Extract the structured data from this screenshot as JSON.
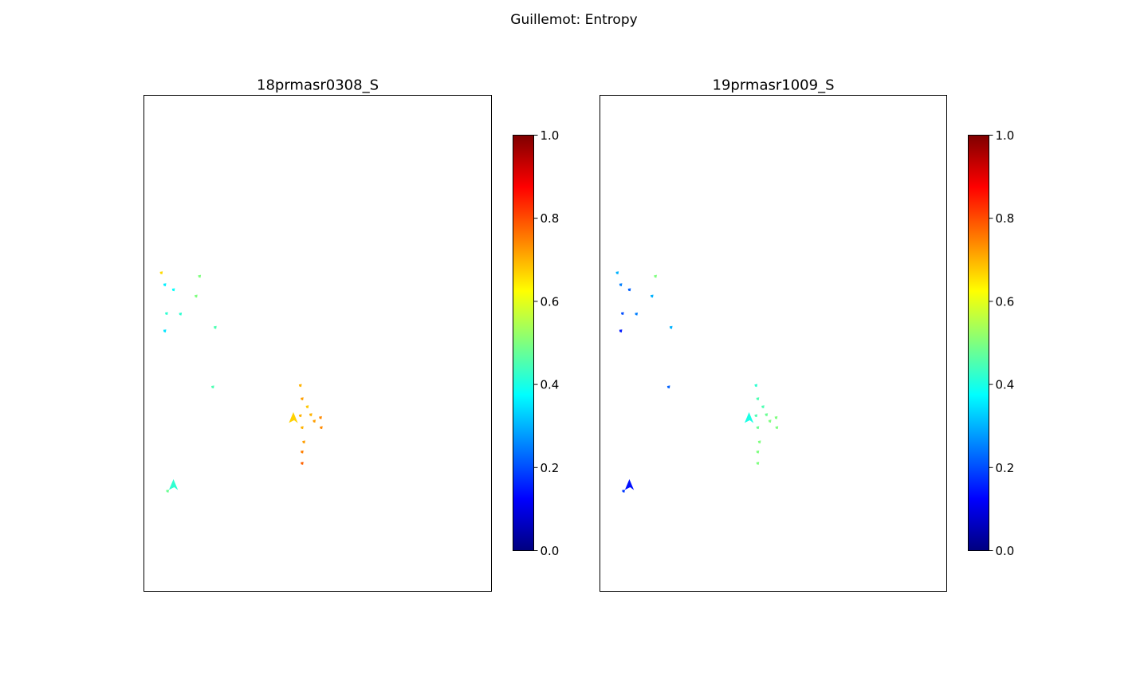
{
  "figure": {
    "title": "Guillemot: Entropy"
  },
  "colormap": {
    "name": "jet",
    "stops": [
      "#00007f",
      "#0000ff",
      "#007fff",
      "#00ffff",
      "#7fff7f",
      "#ffff00",
      "#ff7f00",
      "#ff0000",
      "#7f0000"
    ]
  },
  "chart_data": [
    {
      "type": "heatmap",
      "title": "18prmasr0308_S",
      "xticks": false,
      "yticks": false,
      "colorbar": {
        "range": [
          0,
          1
        ],
        "ticks": [
          0.0,
          0.2,
          0.4,
          0.6,
          0.8,
          1.0
        ],
        "tick_labels": [
          "0.0",
          "0.2",
          "0.4",
          "0.6",
          "0.8",
          "1.0"
        ]
      },
      "patches": [
        {
          "x": 0.05,
          "y": 0.358,
          "value": 0.66
        },
        {
          "x": 0.06,
          "y": 0.382,
          "value": 0.36
        },
        {
          "x": 0.085,
          "y": 0.392,
          "value": 0.38
        },
        {
          "x": 0.16,
          "y": 0.365,
          "value": 0.5
        },
        {
          "x": 0.15,
          "y": 0.405,
          "value": 0.5
        },
        {
          "x": 0.065,
          "y": 0.44,
          "value": 0.42
        },
        {
          "x": 0.105,
          "y": 0.441,
          "value": 0.42
        },
        {
          "x": 0.06,
          "y": 0.475,
          "value": 0.35
        },
        {
          "x": 0.205,
          "y": 0.468,
          "value": 0.45
        },
        {
          "x": 0.198,
          "y": 0.588,
          "value": 0.45
        },
        {
          "x": 0.43,
          "y": 0.653,
          "value": 0.67
        },
        {
          "x": 0.48,
          "y": 0.644,
          "value": 0.7
        },
        {
          "x": 0.47,
          "y": 0.628,
          "value": 0.68
        },
        {
          "x": 0.49,
          "y": 0.657,
          "value": 0.72
        },
        {
          "x": 0.455,
          "y": 0.67,
          "value": 0.7
        },
        {
          "x": 0.45,
          "y": 0.585,
          "value": 0.7
        },
        {
          "x": 0.46,
          "y": 0.699,
          "value": 0.72
        },
        {
          "x": 0.455,
          "y": 0.612,
          "value": 0.72
        },
        {
          "x": 0.508,
          "y": 0.65,
          "value": 0.74
        },
        {
          "x": 0.51,
          "y": 0.67,
          "value": 0.74
        },
        {
          "x": 0.455,
          "y": 0.719,
          "value": 0.75
        },
        {
          "x": 0.455,
          "y": 0.742,
          "value": 0.78
        },
        {
          "x": 0.45,
          "y": 0.646,
          "value": 0.7
        },
        {
          "x": 0.085,
          "y": 0.788,
          "value": 0.42
        },
        {
          "x": 0.068,
          "y": 0.798,
          "value": 0.48
        }
      ]
    },
    {
      "type": "heatmap",
      "title": "19prmasr1009_S",
      "xticks": false,
      "yticks": false,
      "colorbar": {
        "range": [
          0,
          1
        ],
        "ticks": [
          0.0,
          0.2,
          0.4,
          0.6,
          0.8,
          1.0
        ],
        "tick_labels": [
          "0.0",
          "0.2",
          "0.4",
          "0.6",
          "0.8",
          "1.0"
        ]
      },
      "patches": [
        {
          "x": 0.05,
          "y": 0.358,
          "value": 0.3
        },
        {
          "x": 0.06,
          "y": 0.382,
          "value": 0.25
        },
        {
          "x": 0.085,
          "y": 0.392,
          "value": 0.22
        },
        {
          "x": 0.16,
          "y": 0.365,
          "value": 0.5
        },
        {
          "x": 0.15,
          "y": 0.405,
          "value": 0.3
        },
        {
          "x": 0.065,
          "y": 0.44,
          "value": 0.2
        },
        {
          "x": 0.105,
          "y": 0.441,
          "value": 0.25
        },
        {
          "x": 0.06,
          "y": 0.475,
          "value": 0.15
        },
        {
          "x": 0.205,
          "y": 0.468,
          "value": 0.3
        },
        {
          "x": 0.198,
          "y": 0.588,
          "value": 0.22
        },
        {
          "x": 0.43,
          "y": 0.653,
          "value": 0.4
        },
        {
          "x": 0.48,
          "y": 0.644,
          "value": 0.48
        },
        {
          "x": 0.47,
          "y": 0.628,
          "value": 0.45
        },
        {
          "x": 0.49,
          "y": 0.657,
          "value": 0.5
        },
        {
          "x": 0.455,
          "y": 0.67,
          "value": 0.48
        },
        {
          "x": 0.45,
          "y": 0.585,
          "value": 0.42
        },
        {
          "x": 0.46,
          "y": 0.699,
          "value": 0.5
        },
        {
          "x": 0.455,
          "y": 0.612,
          "value": 0.45
        },
        {
          "x": 0.508,
          "y": 0.65,
          "value": 0.5
        },
        {
          "x": 0.51,
          "y": 0.67,
          "value": 0.5
        },
        {
          "x": 0.455,
          "y": 0.719,
          "value": 0.5
        },
        {
          "x": 0.455,
          "y": 0.742,
          "value": 0.5
        },
        {
          "x": 0.45,
          "y": 0.646,
          "value": 0.45
        },
        {
          "x": 0.085,
          "y": 0.788,
          "value": 0.14
        },
        {
          "x": 0.068,
          "y": 0.798,
          "value": 0.18
        }
      ]
    }
  ]
}
